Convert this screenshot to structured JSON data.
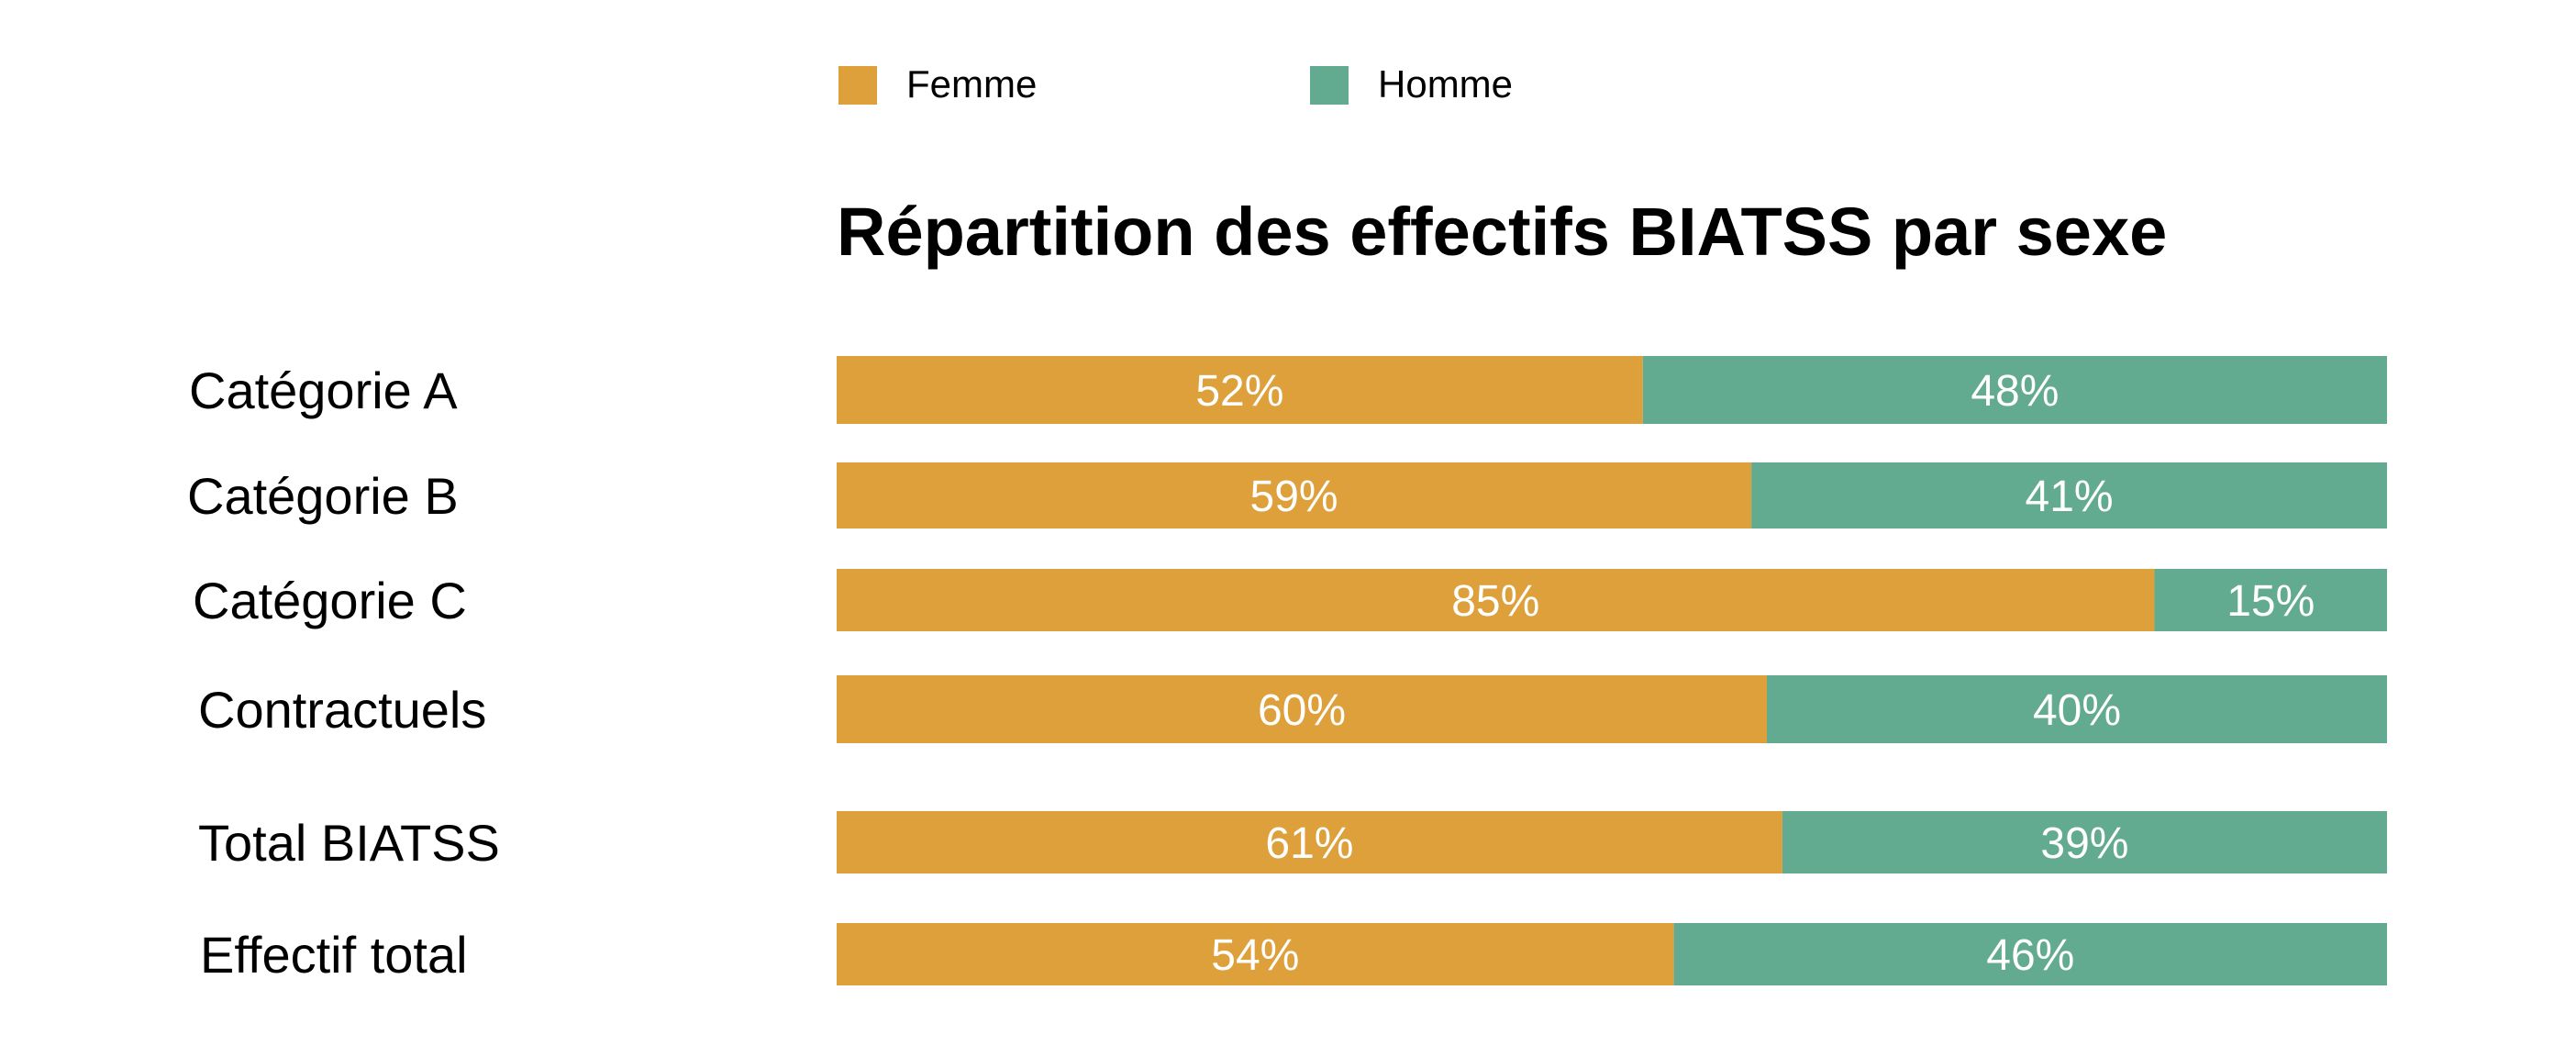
{
  "chart_data": {
    "type": "bar",
    "orientation": "horizontal",
    "stacked": true,
    "percent": true,
    "title": "Répartition des effectifs BIATSS par sexe",
    "categories": [
      "Catégorie A",
      "Catégorie B",
      "Catégorie C",
      "Contractuels",
      "Total BIATSS",
      "Effectif total"
    ],
    "series": [
      {
        "name": "Femme",
        "color": "#DDA03B",
        "values": [
          52,
          59,
          85,
          60,
          61,
          54
        ],
        "labels": [
          "52%",
          "59%",
          "85%",
          "60%",
          "61%",
          "54%"
        ]
      },
      {
        "name": "Homme",
        "color": "#63AB90",
        "values": [
          48,
          41,
          15,
          40,
          39,
          46
        ],
        "labels": [
          "48%",
          "41%",
          "15%",
          "40%",
          "39%",
          "46%"
        ]
      }
    ],
    "xlim": [
      0,
      100
    ],
    "legend": "top",
    "grid": false
  }
}
